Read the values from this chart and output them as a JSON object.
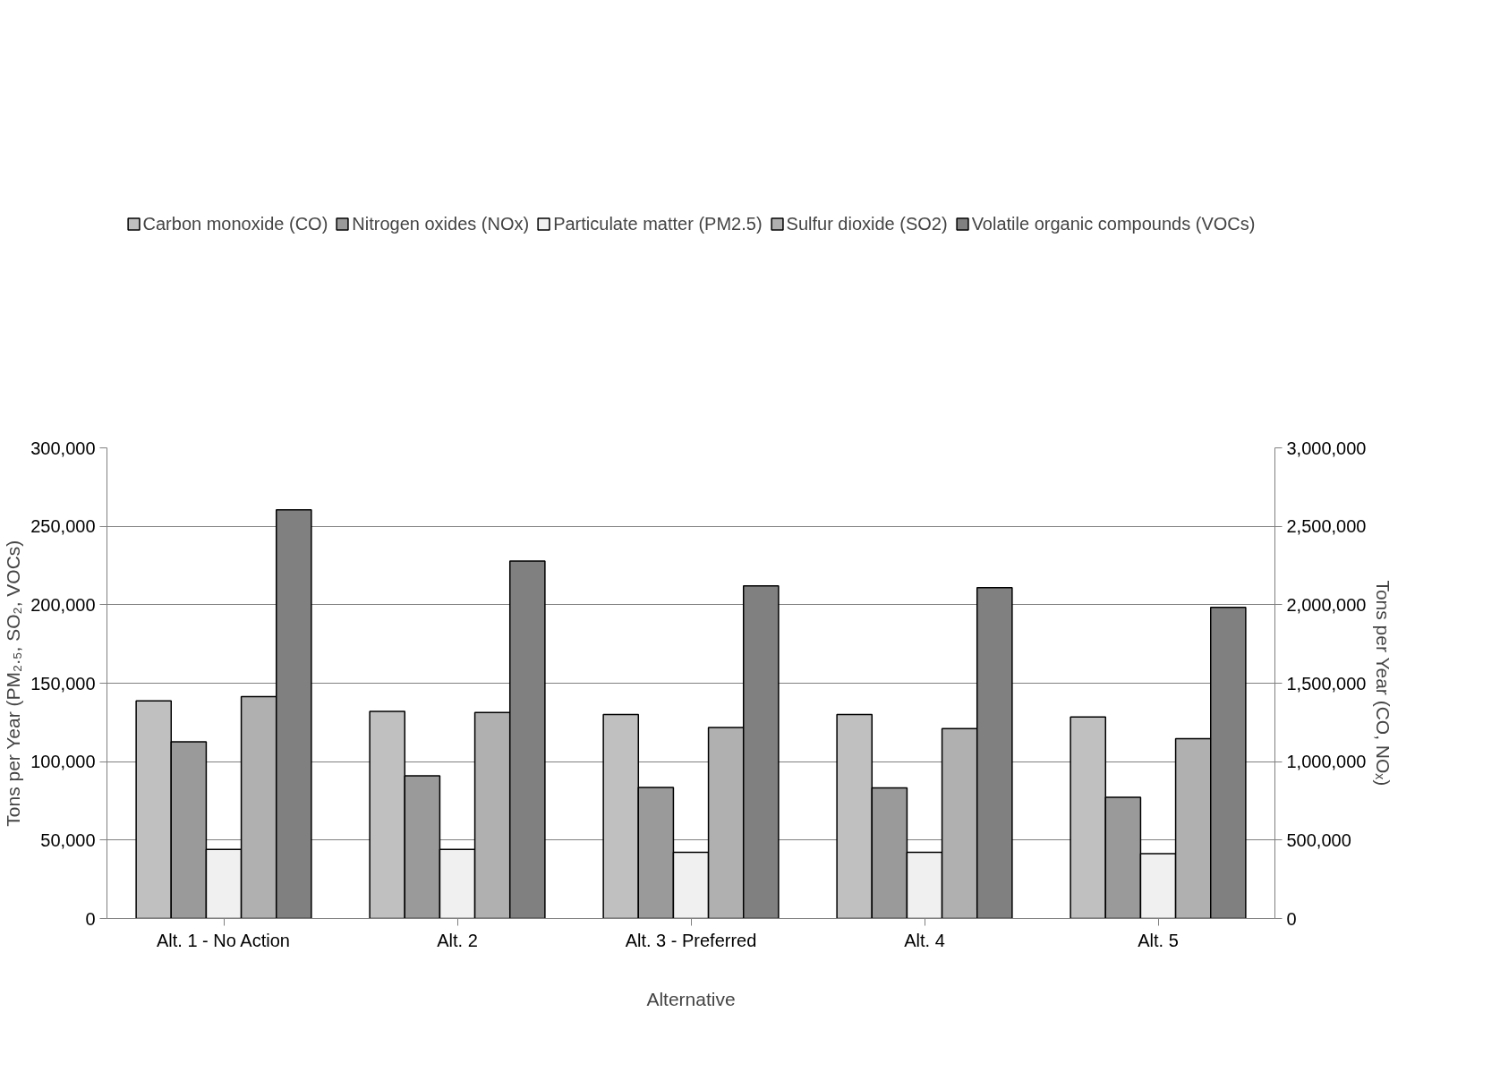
{
  "chart_data": {
    "type": "bar",
    "xlabel": "Alternative",
    "ylabel": "Tons per Year (PM₂.₅, SO₂, VOCs)",
    "y2label": "Tons per Year (CO, NOₓ)",
    "categories": [
      "Alt. 1 - No Action",
      "Alt. 2",
      "Alt. 3 - Preferred",
      "Alt. 4",
      "Alt. 5"
    ],
    "series": [
      {
        "name": "Carbon monoxide (CO)",
        "color": "#c0c0c0",
        "axis": "y2",
        "values": [
          1387000,
          1320000,
          1300000,
          1300000,
          1285000
        ]
      },
      {
        "name": "Nitrogen oxides (NOx)",
        "color": "#9a9a9a",
        "axis": "y2",
        "values": [
          1127000,
          910000,
          836000,
          832000,
          773000
        ]
      },
      {
        "name": "Particulate matter (PM2.5)",
        "color": "#f0f0f0",
        "values": [
          44100,
          44000,
          42200,
          42200,
          41400
        ]
      },
      {
        "name": "Sulfur dioxide (SO2)",
        "color": "#b0b0b0",
        "values": [
          141500,
          131300,
          121800,
          121000,
          114700
        ]
      },
      {
        "name": "Volatile organic compounds (VOCs)",
        "color": "#808080",
        "values": [
          260500,
          227800,
          212000,
          210900,
          198300
        ]
      }
    ],
    "ylim": [
      0,
      300000
    ],
    "yticks": [
      {
        "value": 0,
        "label": "0"
      },
      {
        "value": 50000,
        "label": "50,000"
      },
      {
        "value": 100000,
        "label": "100,000"
      },
      {
        "value": 150000,
        "label": "150,000"
      },
      {
        "value": 200000,
        "label": "200,000"
      },
      {
        "value": 250000,
        "label": "250,000"
      },
      {
        "value": 300000,
        "label": "300,000"
      }
    ],
    "y2lim": [
      0,
      3000000
    ],
    "y2ticks": [
      {
        "value": 0,
        "label": "0"
      },
      {
        "value": 500000,
        "label": "500,000"
      },
      {
        "value": 1000000,
        "label": "1,000,000"
      },
      {
        "value": 1500000,
        "label": "1,500,000"
      },
      {
        "value": 2000000,
        "label": "2,000,000"
      },
      {
        "value": 2500000,
        "label": "2,500,000"
      },
      {
        "value": 3000000,
        "label": "3,000,000"
      }
    ],
    "grid": "y",
    "legend": "top"
  }
}
